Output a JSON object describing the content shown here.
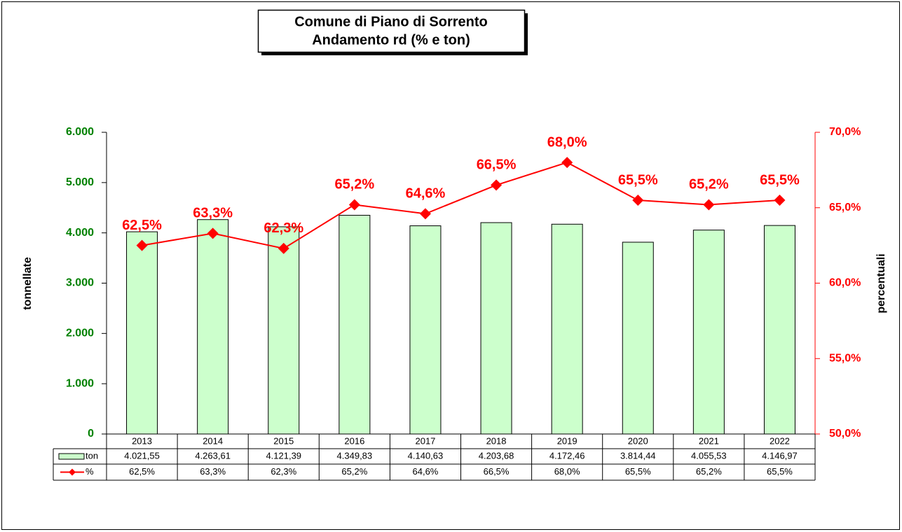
{
  "chart_data": {
    "type": "bar",
    "title": "Comune di Piano di Sorrento",
    "subtitle": "Andamento rd (% e ton)",
    "y_label": "tonnellate",
    "y2_label": "percentuali",
    "categories": [
      "2013",
      "2014",
      "2015",
      "2016",
      "2017",
      "2018",
      "2019",
      "2020",
      "2021",
      "2022"
    ],
    "series": [
      {
        "name": "ton",
        "type": "bar",
        "color": "#ccffcc",
        "values": [
          4021.55,
          4263.61,
          4121.39,
          4349.83,
          4140.63,
          4203.68,
          4172.46,
          3814.44,
          4055.53,
          4146.97
        ],
        "value_labels": [
          "4.021,55",
          "4.263,61",
          "4.121,39",
          "4.349,83",
          "4.140,63",
          "4.203,68",
          "4.172,46",
          "3.814,44",
          "4.055,53",
          "4.146,97"
        ]
      },
      {
        "name": "%",
        "type": "line",
        "axis": "y2",
        "color": "#ff0000",
        "values": [
          62.5,
          63.3,
          62.3,
          65.2,
          64.6,
          66.5,
          68.0,
          65.5,
          65.2,
          65.5
        ],
        "value_labels": [
          "62,5%",
          "63,3%",
          "62,3%",
          "65,2%",
          "64,6%",
          "66,5%",
          "68,0%",
          "65,5%",
          "65,2%",
          "65,5%"
        ]
      }
    ],
    "ylim": [
      0,
      6000
    ],
    "yticks": [
      0,
      {
        "value": 1000,
        "label": "1.000"
      },
      {
        "value": 2000,
        "label": "2.000"
      },
      {
        "value": 3000,
        "label": "3.000"
      },
      {
        "value": 4000,
        "label": "4.000"
      },
      {
        "value": 5000,
        "label": "5.000"
      },
      {
        "value": 6000,
        "label": "6.000"
      }
    ],
    "y2lim": [
      50,
      70
    ],
    "y2ticks": [
      {
        "value": 50,
        "label": "50,0%"
      },
      {
        "value": 55,
        "label": "55,0%"
      },
      {
        "value": 60,
        "label": "60,0%"
      },
      {
        "value": 65,
        "label": "65,0%"
      },
      {
        "value": 70,
        "label": "70,0%"
      }
    ],
    "grid": false,
    "data_table": true
  }
}
